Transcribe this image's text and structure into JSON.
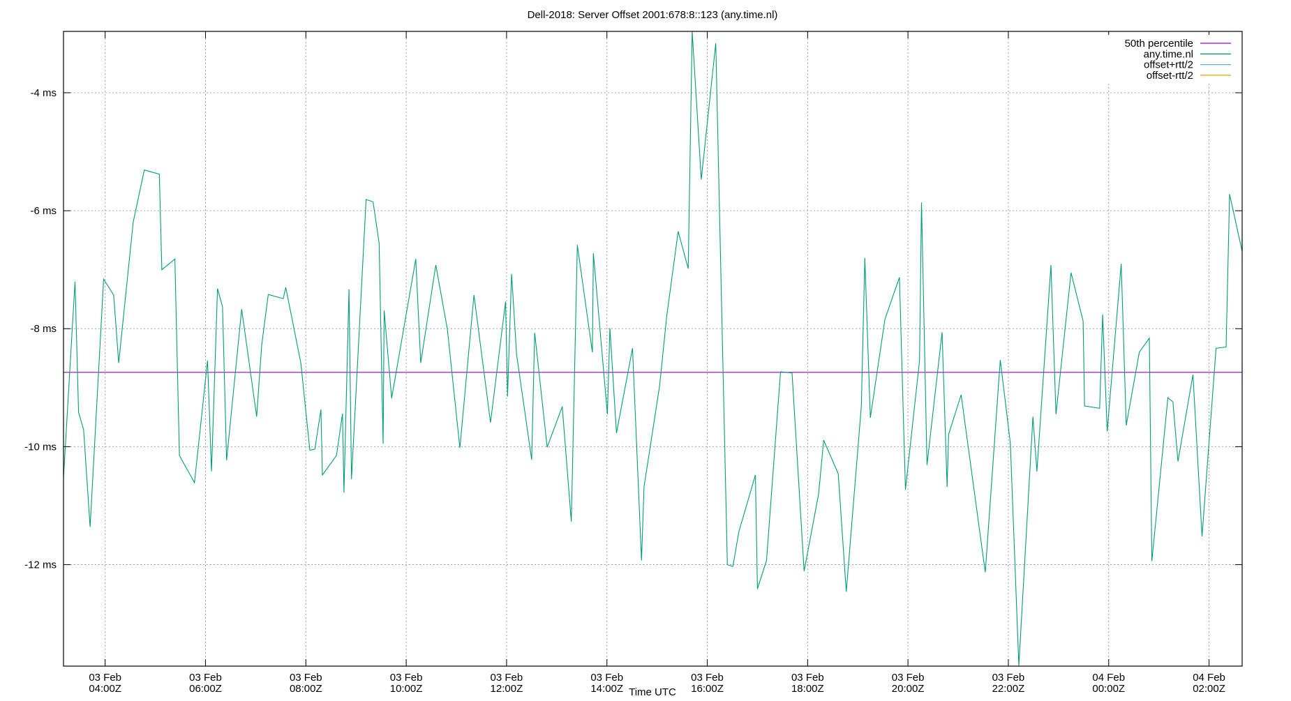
{
  "chart_data": {
    "type": "line",
    "title": "Dell-2018: Server Offset 2001:678:8::123 (any.time.nl)",
    "xlabel": "Time UTC",
    "ylabel": "",
    "x_units": "hours since 03 Feb 00:00Z",
    "xlim": [
      3.17,
      26.66
    ],
    "ylim": [
      -13.72,
      -2.96
    ],
    "grid": true,
    "legend_position": "top-right",
    "x_ticks": [
      {
        "value": 4,
        "label": [
          "03 Feb",
          "04:00Z"
        ]
      },
      {
        "value": 6,
        "label": [
          "03 Feb",
          "06:00Z"
        ]
      },
      {
        "value": 8,
        "label": [
          "03 Feb",
          "08:00Z"
        ]
      },
      {
        "value": 10,
        "label": [
          "03 Feb",
          "10:00Z"
        ]
      },
      {
        "value": 12,
        "label": [
          "03 Feb",
          "12:00Z"
        ]
      },
      {
        "value": 14,
        "label": [
          "03 Feb",
          "14:00Z"
        ]
      },
      {
        "value": 16,
        "label": [
          "03 Feb",
          "16:00Z"
        ]
      },
      {
        "value": 18,
        "label": [
          "03 Feb",
          "18:00Z"
        ]
      },
      {
        "value": 20,
        "label": [
          "03 Feb",
          "20:00Z"
        ]
      },
      {
        "value": 22,
        "label": [
          "03 Feb",
          "22:00Z"
        ]
      },
      {
        "value": 24,
        "label": [
          "04 Feb",
          "00:00Z"
        ]
      },
      {
        "value": 26,
        "label": [
          "04 Feb",
          "02:00Z"
        ]
      }
    ],
    "y_ticks": [
      {
        "value": -4,
        "label": "-4 ms"
      },
      {
        "value": -6,
        "label": "-6 ms"
      },
      {
        "value": -8,
        "label": "-8 ms"
      },
      {
        "value": -10,
        "label": "-10 ms"
      },
      {
        "value": -12,
        "label": "-12 ms"
      }
    ],
    "legend": [
      {
        "name": "50th percentile",
        "color": "#9400d3"
      },
      {
        "name": "any.time.nl",
        "color": "#009e73"
      },
      {
        "name": "offset+rtt/2",
        "color": "#56b4e9"
      },
      {
        "name": "offset-rtt/2",
        "color": "#e69f00"
      }
    ],
    "median": -8.74,
    "series": [
      {
        "name": "any.time.nl",
        "color": "#009e73",
        "x": [
          3.17,
          3.4,
          3.47,
          3.57,
          3.7,
          3.97,
          4.17,
          4.27,
          4.56,
          4.78,
          5.08,
          5.13,
          5.39,
          5.48,
          5.78,
          6.04,
          6.12,
          6.24,
          6.34,
          6.42,
          6.72,
          7.02,
          7.12,
          7.25,
          7.55,
          7.6,
          7.9,
          8.08,
          8.18,
          8.3,
          8.33,
          8.61,
          8.73,
          8.76,
          8.86,
          8.91,
          9.2,
          9.34,
          9.46,
          9.54,
          9.56,
          9.71,
          10.19,
          10.29,
          10.59,
          10.82,
          11.07,
          11.35,
          11.68,
          11.98,
          12.02,
          12.1,
          12.2,
          12.5,
          12.56,
          12.81,
          13.11,
          13.29,
          13.41,
          13.71,
          13.73,
          14.01,
          14.06,
          14.19,
          14.51,
          14.69,
          14.74,
          15.05,
          15.19,
          15.42,
          15.62,
          15.7,
          15.88,
          16.17,
          16.4,
          16.51,
          16.63,
          16.96,
          17.0,
          17.18,
          17.46,
          17.69,
          17.93,
          18.22,
          18.32,
          18.61,
          18.77,
          19.07,
          19.14,
          19.25,
          19.54,
          19.83,
          19.95,
          20.23,
          20.27,
          20.38,
          20.68,
          20.78,
          20.81,
          21.06,
          21.54,
          21.84,
          22.04,
          22.21,
          22.49,
          22.57,
          22.85,
          22.95,
          23.25,
          23.49,
          23.52,
          23.82,
          23.88,
          23.97,
          24.25,
          24.35,
          24.61,
          24.81,
          24.86,
          25.18,
          25.28,
          25.38,
          25.68,
          25.86,
          26.14,
          26.34,
          26.41,
          26.66
        ],
        "y": [
          -10.53,
          -7.2,
          -9.42,
          -9.71,
          -11.36,
          -7.16,
          -7.43,
          -8.58,
          -6.19,
          -5.31,
          -5.38,
          -7.0,
          -6.82,
          -10.15,
          -10.61,
          -8.54,
          -10.42,
          -7.32,
          -7.63,
          -10.23,
          -7.67,
          -9.49,
          -8.28,
          -7.42,
          -7.49,
          -7.3,
          -8.58,
          -10.06,
          -10.04,
          -9.37,
          -10.48,
          -10.15,
          -9.44,
          -10.78,
          -7.33,
          -10.55,
          -5.81,
          -5.85,
          -6.55,
          -9.95,
          -7.69,
          -9.18,
          -6.82,
          -8.58,
          -6.92,
          -8.01,
          -10.02,
          -7.43,
          -9.59,
          -7.54,
          -9.15,
          -7.07,
          -8.44,
          -10.22,
          -8.07,
          -10.01,
          -9.32,
          -11.27,
          -6.58,
          -8.4,
          -6.72,
          -9.45,
          -7.99,
          -9.77,
          -8.33,
          -11.93,
          -10.68,
          -8.97,
          -7.8,
          -6.35,
          -6.98,
          -2.96,
          -5.47,
          -3.16,
          -12.0,
          -12.03,
          -11.44,
          -10.48,
          -12.41,
          -11.93,
          -8.73,
          -8.75,
          -12.11,
          -10.8,
          -9.89,
          -10.46,
          -12.46,
          -9.31,
          -6.8,
          -9.51,
          -7.84,
          -7.13,
          -10.73,
          -8.54,
          -5.86,
          -10.31,
          -8.06,
          -10.68,
          -9.79,
          -9.12,
          -12.13,
          -8.53,
          -9.94,
          -13.71,
          -9.49,
          -10.42,
          -6.92,
          -9.45,
          -7.05,
          -7.87,
          -9.31,
          -9.35,
          -7.76,
          -9.74,
          -6.9,
          -9.64,
          -8.4,
          -8.16,
          -11.94,
          -9.17,
          -9.24,
          -10.25,
          -8.78,
          -11.52,
          -8.33,
          -8.31,
          -5.72,
          -6.69
        ]
      }
    ]
  }
}
